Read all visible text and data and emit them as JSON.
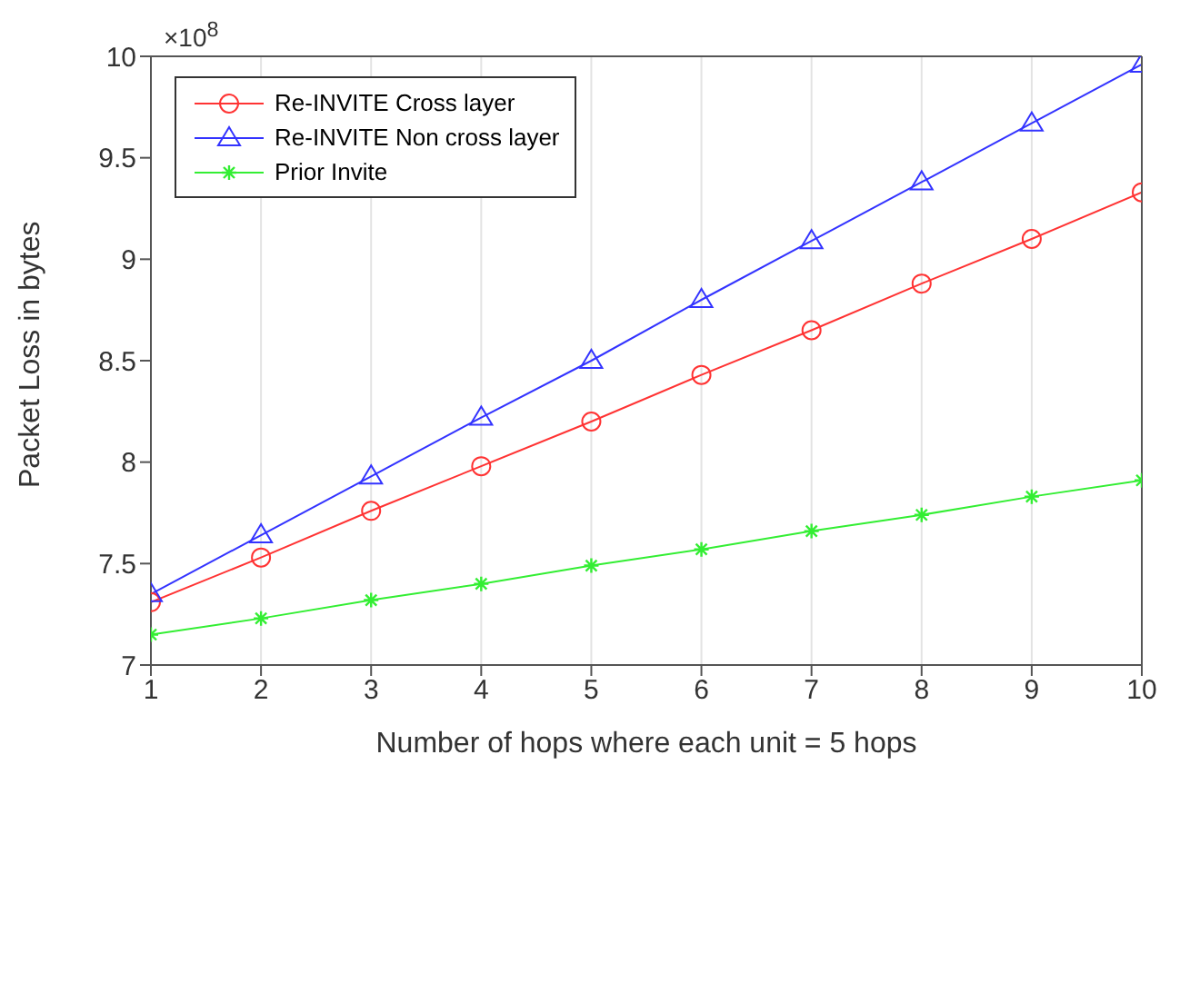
{
  "chart_data": {
    "type": "line",
    "xlabel": "Number of hops where each unit = 5 hops",
    "ylabel": "Packet Loss in bytes",
    "annotations": [
      "×10$^{8}$"
    ],
    "x": [
      1,
      2,
      3,
      4,
      5,
      6,
      7,
      8,
      9,
      10
    ],
    "series": [
      {
        "name": "Re-INVITE Cross layer",
        "color": "#ff3333",
        "marker": "circle",
        "values": [
          7.31,
          7.53,
          7.76,
          7.98,
          8.2,
          8.43,
          8.65,
          8.88,
          9.1,
          9.33
        ]
      },
      {
        "name": "Re-INVITE Non cross layer",
        "color": "#3333ff",
        "marker": "triangle",
        "values": [
          7.35,
          7.64,
          7.93,
          8.22,
          8.5,
          8.8,
          9.09,
          9.38,
          9.67,
          9.96
        ]
      },
      {
        "name": "Prior Invite",
        "color": "#33ee33",
        "marker": "cross",
        "values": [
          7.15,
          7.23,
          7.32,
          7.4,
          7.49,
          7.57,
          7.66,
          7.74,
          7.83,
          7.91
        ]
      }
    ],
    "xlim": [
      1,
      10
    ],
    "xticks": [
      1,
      2,
      3,
      4,
      5,
      6,
      7,
      8,
      9,
      10
    ],
    "ylim": [
      7,
      10
    ],
    "yticks": [
      7,
      7.5,
      8,
      8.5,
      9,
      9.5,
      10
    ],
    "grid": true,
    "legend": "top left"
  }
}
